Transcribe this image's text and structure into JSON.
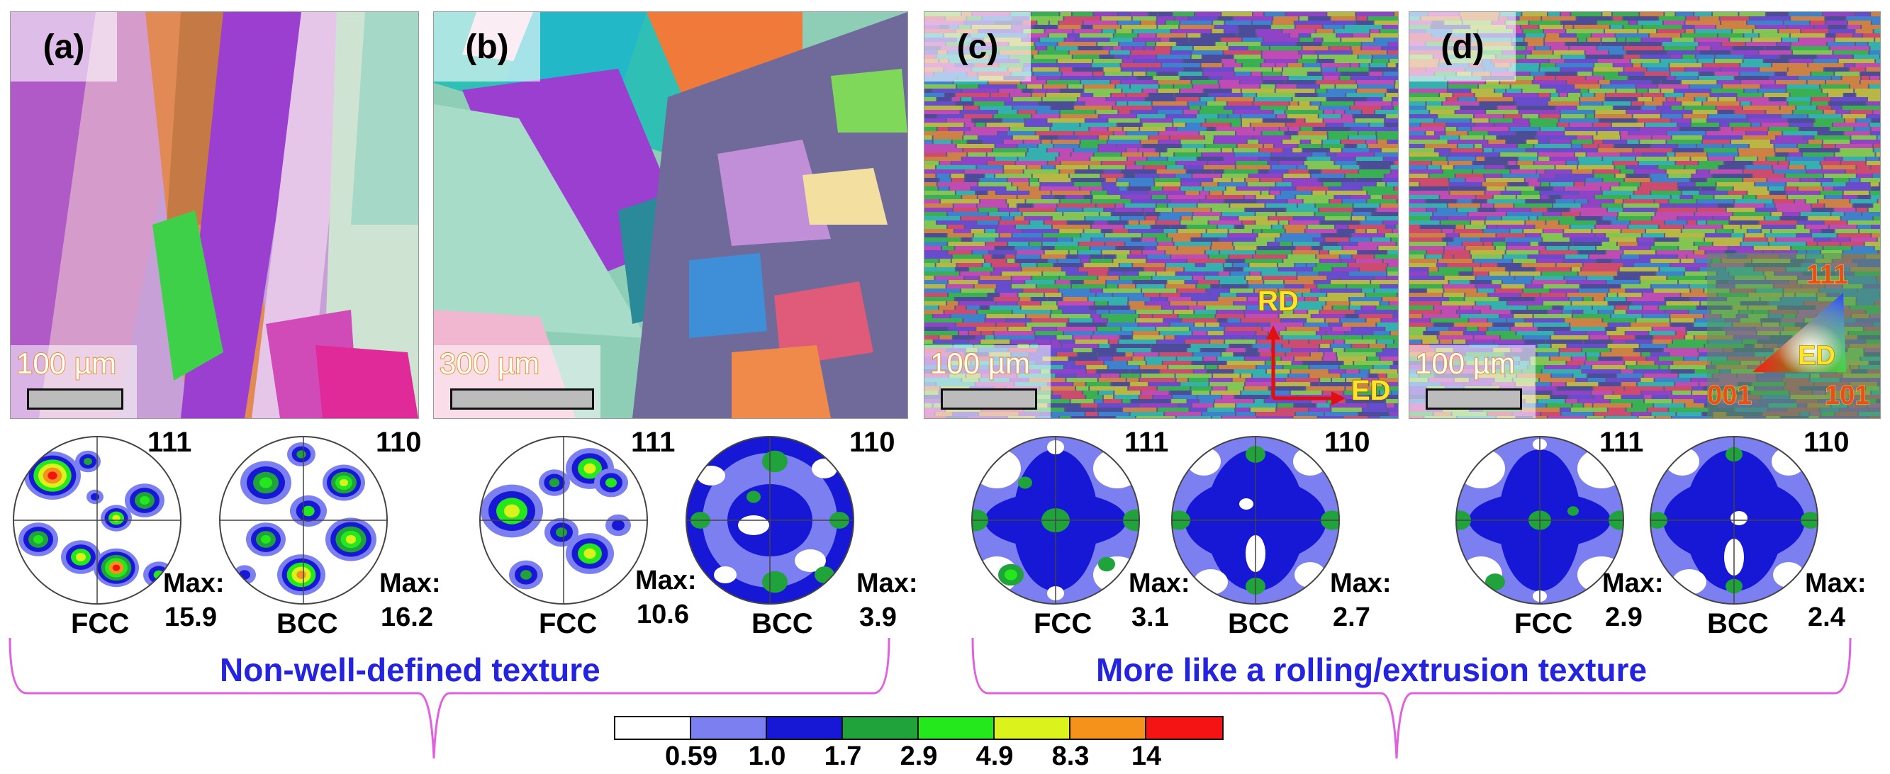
{
  "panels": [
    {
      "label": "(a)",
      "scale": "100 µm",
      "pole_labels": [
        "111",
        "110"
      ],
      "phases": [
        "FCC",
        "BCC"
      ],
      "max_label": "Max:",
      "max_values": [
        "15.9",
        "16.2"
      ]
    },
    {
      "label": "(b)",
      "scale": "300 µm",
      "pole_labels": [
        "111",
        "110"
      ],
      "phases": [
        "FCC",
        "BCC"
      ],
      "max_label": "Max:",
      "max_values": [
        "10.6",
        "3.9"
      ]
    },
    {
      "label": "(c)",
      "scale": "100 µm",
      "pole_labels": [
        "111",
        "110"
      ],
      "phases": [
        "FCC",
        "BCC"
      ],
      "max_label": "Max:",
      "max_values": [
        "3.1",
        "2.7"
      ],
      "axes": {
        "rd": "RD",
        "ed": "ED"
      }
    },
    {
      "label": "(d)",
      "scale": "100 µm",
      "pole_labels": [
        "111",
        "110"
      ],
      "phases": [
        "FCC",
        "BCC"
      ],
      "max_label": "Max:",
      "max_values": [
        "2.9",
        "2.4"
      ],
      "ipf_key": {
        "top": "111",
        "center": "ED",
        "left": "001",
        "right": "101"
      }
    }
  ],
  "captions": {
    "left": "Non-well-defined texture",
    "right": "More like a rolling/extrusion texture"
  },
  "colorbar": {
    "colors": [
      "#ffffff",
      "#7b7ff0",
      "#1717d6",
      "#1fa33a",
      "#25e81c",
      "#dcf21c",
      "#f5921c",
      "#f51414"
    ],
    "ticks": [
      "0.59",
      "1.0",
      "1.7",
      "2.9",
      "4.9",
      "8.3",
      "14"
    ]
  },
  "colors": {
    "caption": "#2323e0",
    "brace": "#e060e0",
    "scale_text_outline": "#f08a24",
    "axis_arrow": "#e01010",
    "axis_text": "#ffe42a"
  }
}
